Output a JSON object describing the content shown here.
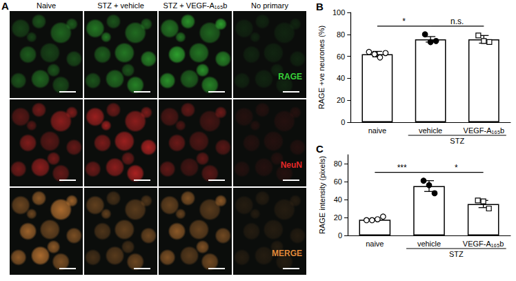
{
  "panel_a": {
    "label": "A",
    "columns": [
      "Naive",
      "STZ + vehicle",
      "STZ + VEGF-A₁₆₅b",
      "No primary"
    ],
    "rows": [
      {
        "label": "RAGE",
        "color": "#38d038"
      },
      {
        "label": "NeuN",
        "color": "#e02828"
      },
      {
        "label": "MERGE",
        "color": "#e08a3a"
      }
    ]
  },
  "chart_data": [
    {
      "type": "bar",
      "annotations": [
        "B"
      ],
      "categories": [
        "naive",
        "vehicle",
        "VEGF-A₁₆₅b"
      ],
      "values": [
        62,
        75.5,
        75.5
      ],
      "errors": [
        2.5,
        2.5,
        3.5
      ],
      "points": [
        {
          "values": [
            64,
            62,
            59,
            63
          ],
          "marker": "open circle"
        },
        {
          "values": [
            80,
            73,
            74
          ],
          "marker": "filled circle"
        },
        {
          "values": [
            79,
            74,
            73
          ],
          "marker": "open square"
        }
      ],
      "ylabel": "RAGE +ve neurones (%)",
      "ylim": [
        0,
        100
      ],
      "yticks": [
        0,
        20,
        40,
        60,
        80,
        100
      ],
      "color": "#ffffff",
      "group": {
        "text": "STZ",
        "categories": [
          "vehicle",
          "VEGF-A₁₆₅b"
        ]
      },
      "significance": [
        {
          "text": "*",
          "between": [
            "naive",
            "vehicle"
          ]
        },
        {
          "text": "n.s.",
          "between": [
            "vehicle",
            "VEGF-A₁₆₅b"
          ]
        }
      ]
    },
    {
      "type": "bar",
      "annotations": [
        "C"
      ],
      "categories": [
        "naive",
        "vehicle",
        "VEGF-A₁₆₅b"
      ],
      "values": [
        17.5,
        55,
        35
      ],
      "errors": [
        1,
        6,
        4
      ],
      "points": [
        {
          "values": [
            17,
            17,
            18,
            21
          ],
          "marker": "open circle"
        },
        {
          "values": [
            61,
            56,
            47
          ],
          "marker": "filled circle"
        },
        {
          "values": [
            39,
            38,
            30
          ],
          "marker": "open square"
        }
      ],
      "ylabel": "RAGE intensity (pixels)",
      "ylim": [
        0,
        90
      ],
      "yticks": [
        0,
        20,
        40,
        60,
        80
      ],
      "color": "#ffffff",
      "group": {
        "text": "STZ",
        "categories": [
          "vehicle",
          "VEGF-A₁₆₅b"
        ]
      },
      "significance": [
        {
          "text": "***",
          "between": [
            "naive",
            "vehicle"
          ]
        },
        {
          "text": "*",
          "between": [
            "vehicle",
            "VEGF-A₁₆₅b"
          ]
        }
      ]
    }
  ]
}
